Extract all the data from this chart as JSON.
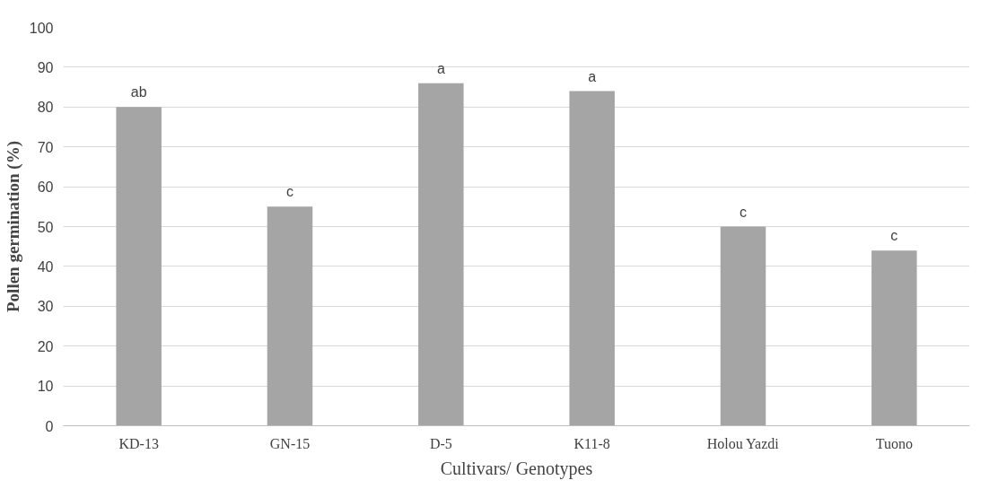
{
  "chart_data": {
    "type": "bar",
    "xlabel": "Cultivars/ Genotypes",
    "ylabel": "Pollen germination (%)",
    "categories": [
      "KD-13",
      "GN-15",
      "D-5",
      "K11-8",
      "Holou Yazdi",
      "Tuono"
    ],
    "values": [
      80,
      55,
      86,
      84,
      50,
      44
    ],
    "color": "#a5a5a5",
    "ylim": [
      0,
      100
    ],
    "yticks": [
      0,
      10,
      20,
      30,
      40,
      50,
      60,
      70,
      80,
      90,
      100
    ],
    "grid": "y",
    "annotations": [
      {
        "text": "ab",
        "x": "KD-13",
        "y": 80
      },
      {
        "text": "c",
        "x": "GN-15",
        "y": 55
      },
      {
        "text": "a",
        "x": "D-5",
        "y": 86
      },
      {
        "text": "a",
        "x": "K11-8",
        "y": 84
      },
      {
        "text": "c",
        "x": "Holou Yazdi",
        "y": 50
      },
      {
        "text": "c",
        "x": "Tuono",
        "y": 44
      }
    ]
  }
}
